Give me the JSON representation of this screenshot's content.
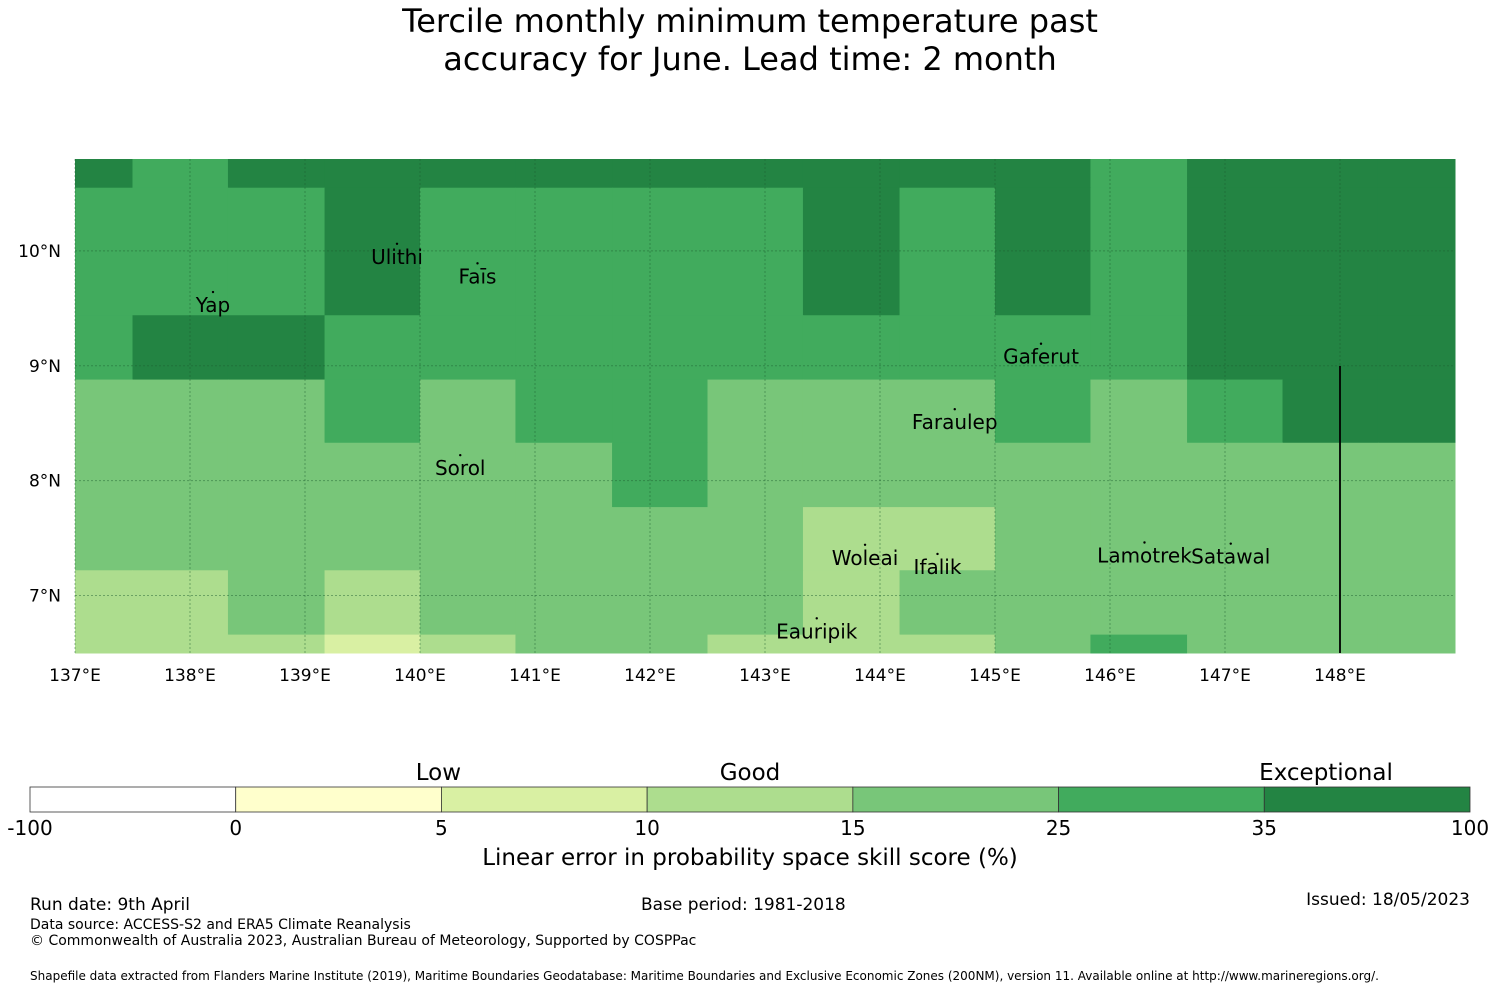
{
  "title": {
    "line1": "Tercile monthly minimum temperature past",
    "line2": "accuracy for June. Lead time: 2 month"
  },
  "map": {
    "lon_ticks": [
      "137°E",
      "138°E",
      "139°E",
      "140°E",
      "141°E",
      "142°E",
      "143°E",
      "144°E",
      "145°E",
      "146°E",
      "147°E",
      "148°E"
    ],
    "lat_ticks": [
      "10°N",
      "9°N",
      "8°N",
      "7°N"
    ],
    "lon_range": [
      137.0,
      149.0
    ],
    "lat_range": [
      6.5,
      10.8
    ],
    "grid": true,
    "places": [
      {
        "name": "Ulithi",
        "lon": 139.8,
        "lat": 9.94
      },
      {
        "name": "Faīs",
        "lon": 140.5,
        "lat": 9.77
      },
      {
        "name": "Yap",
        "lon": 138.2,
        "lat": 9.52
      },
      {
        "name": "Gaferut",
        "lon": 145.4,
        "lat": 9.07
      },
      {
        "name": "Faraulep",
        "lon": 144.65,
        "lat": 8.5
      },
      {
        "name": "Sorol",
        "lon": 140.35,
        "lat": 8.1
      },
      {
        "name": "Lamotrek",
        "lon": 146.3,
        "lat": 7.34
      },
      {
        "name": "Satawal",
        "lon": 147.05,
        "lat": 7.33
      },
      {
        "name": "Woleai",
        "lon": 143.87,
        "lat": 7.32
      },
      {
        "name": "Ifalik",
        "lon": 144.5,
        "lat": 7.24
      },
      {
        "name": "Eauripik",
        "lon": 143.45,
        "lat": 6.68
      }
    ],
    "eez_line_lon": 148.0
  },
  "chart_data": {
    "type": "heatmap",
    "title": "Tercile monthly minimum temperature past accuracy for June. Lead time: 2 month",
    "x_cell_edges_lon": [
      137.0,
      137.5,
      138.33,
      139.17,
      140.0,
      140.83,
      141.67,
      142.5,
      143.33,
      144.17,
      145.0,
      145.83,
      146.67,
      147.5,
      148.33,
      149.0
    ],
    "y_cell_edges_lat": [
      10.8,
      10.55,
      10.0,
      9.44,
      8.88,
      8.33,
      7.77,
      7.22,
      6.66,
      6.5
    ],
    "class_legend": [
      "-100 to 0",
      "0 to 5",
      "5 to 10",
      "10 to 15",
      "15 to 25",
      "25 to 35",
      "35 to 100"
    ],
    "grid_classes": [
      [
        6,
        5,
        6,
        6,
        6,
        6,
        6,
        6,
        6,
        6,
        6,
        5,
        6,
        6,
        6
      ],
      [
        5,
        5,
        5,
        6,
        5,
        5,
        5,
        5,
        6,
        5,
        6,
        5,
        6,
        6,
        6
      ],
      [
        5,
        5,
        5,
        6,
        5,
        5,
        5,
        5,
        6,
        5,
        6,
        5,
        6,
        6,
        6
      ],
      [
        5,
        6,
        6,
        5,
        5,
        5,
        5,
        5,
        5,
        5,
        5,
        5,
        6,
        6,
        6
      ],
      [
        4,
        4,
        4,
        5,
        4,
        5,
        5,
        4,
        4,
        4,
        5,
        4,
        5,
        6,
        6
      ],
      [
        4,
        4,
        4,
        4,
        4,
        4,
        5,
        4,
        4,
        4,
        4,
        4,
        4,
        4,
        4
      ],
      [
        4,
        4,
        4,
        4,
        4,
        4,
        4,
        4,
        3,
        3,
        4,
        4,
        4,
        4,
        4
      ],
      [
        3,
        3,
        4,
        3,
        4,
        4,
        4,
        4,
        3,
        4,
        4,
        4,
        4,
        4,
        4
      ],
      [
        3,
        3,
        3,
        2,
        3,
        4,
        4,
        3,
        3,
        3,
        4,
        5,
        4,
        4,
        4
      ]
    ],
    "colorbar": {
      "boundaries": [
        "-100",
        "0",
        "5",
        "10",
        "15",
        "25",
        "35",
        "100"
      ],
      "colors": [
        "#ffffff",
        "#ffffcc",
        "#d9f0a3",
        "#addd8e",
        "#78c679",
        "#41ab5d",
        "#238443"
      ],
      "categories": [
        "Low",
        "Good",
        "Exceptional"
      ],
      "label": "Linear error in probability space skill score (%)"
    }
  },
  "footer": {
    "run_date": "Run date: 9th April",
    "base_period": "Base period: 1981-2018",
    "issued": "Issued: 18/05/2023",
    "data_source": "Data source: ACCESS-S2 and ERA5 Climate Reanalysis",
    "copyright": "© Commonwealth of Australia 2023, Australian Bureau of Meteorology, Supported by COSPPac",
    "shapefile": "Shapefile data extracted from Flanders Marine Institute (2019), Maritime Boundaries Geodatabase: Maritime Boundaries and Exclusive Economic Zones (200NM), version 11. Available online at http://www.marineregions.org/."
  }
}
